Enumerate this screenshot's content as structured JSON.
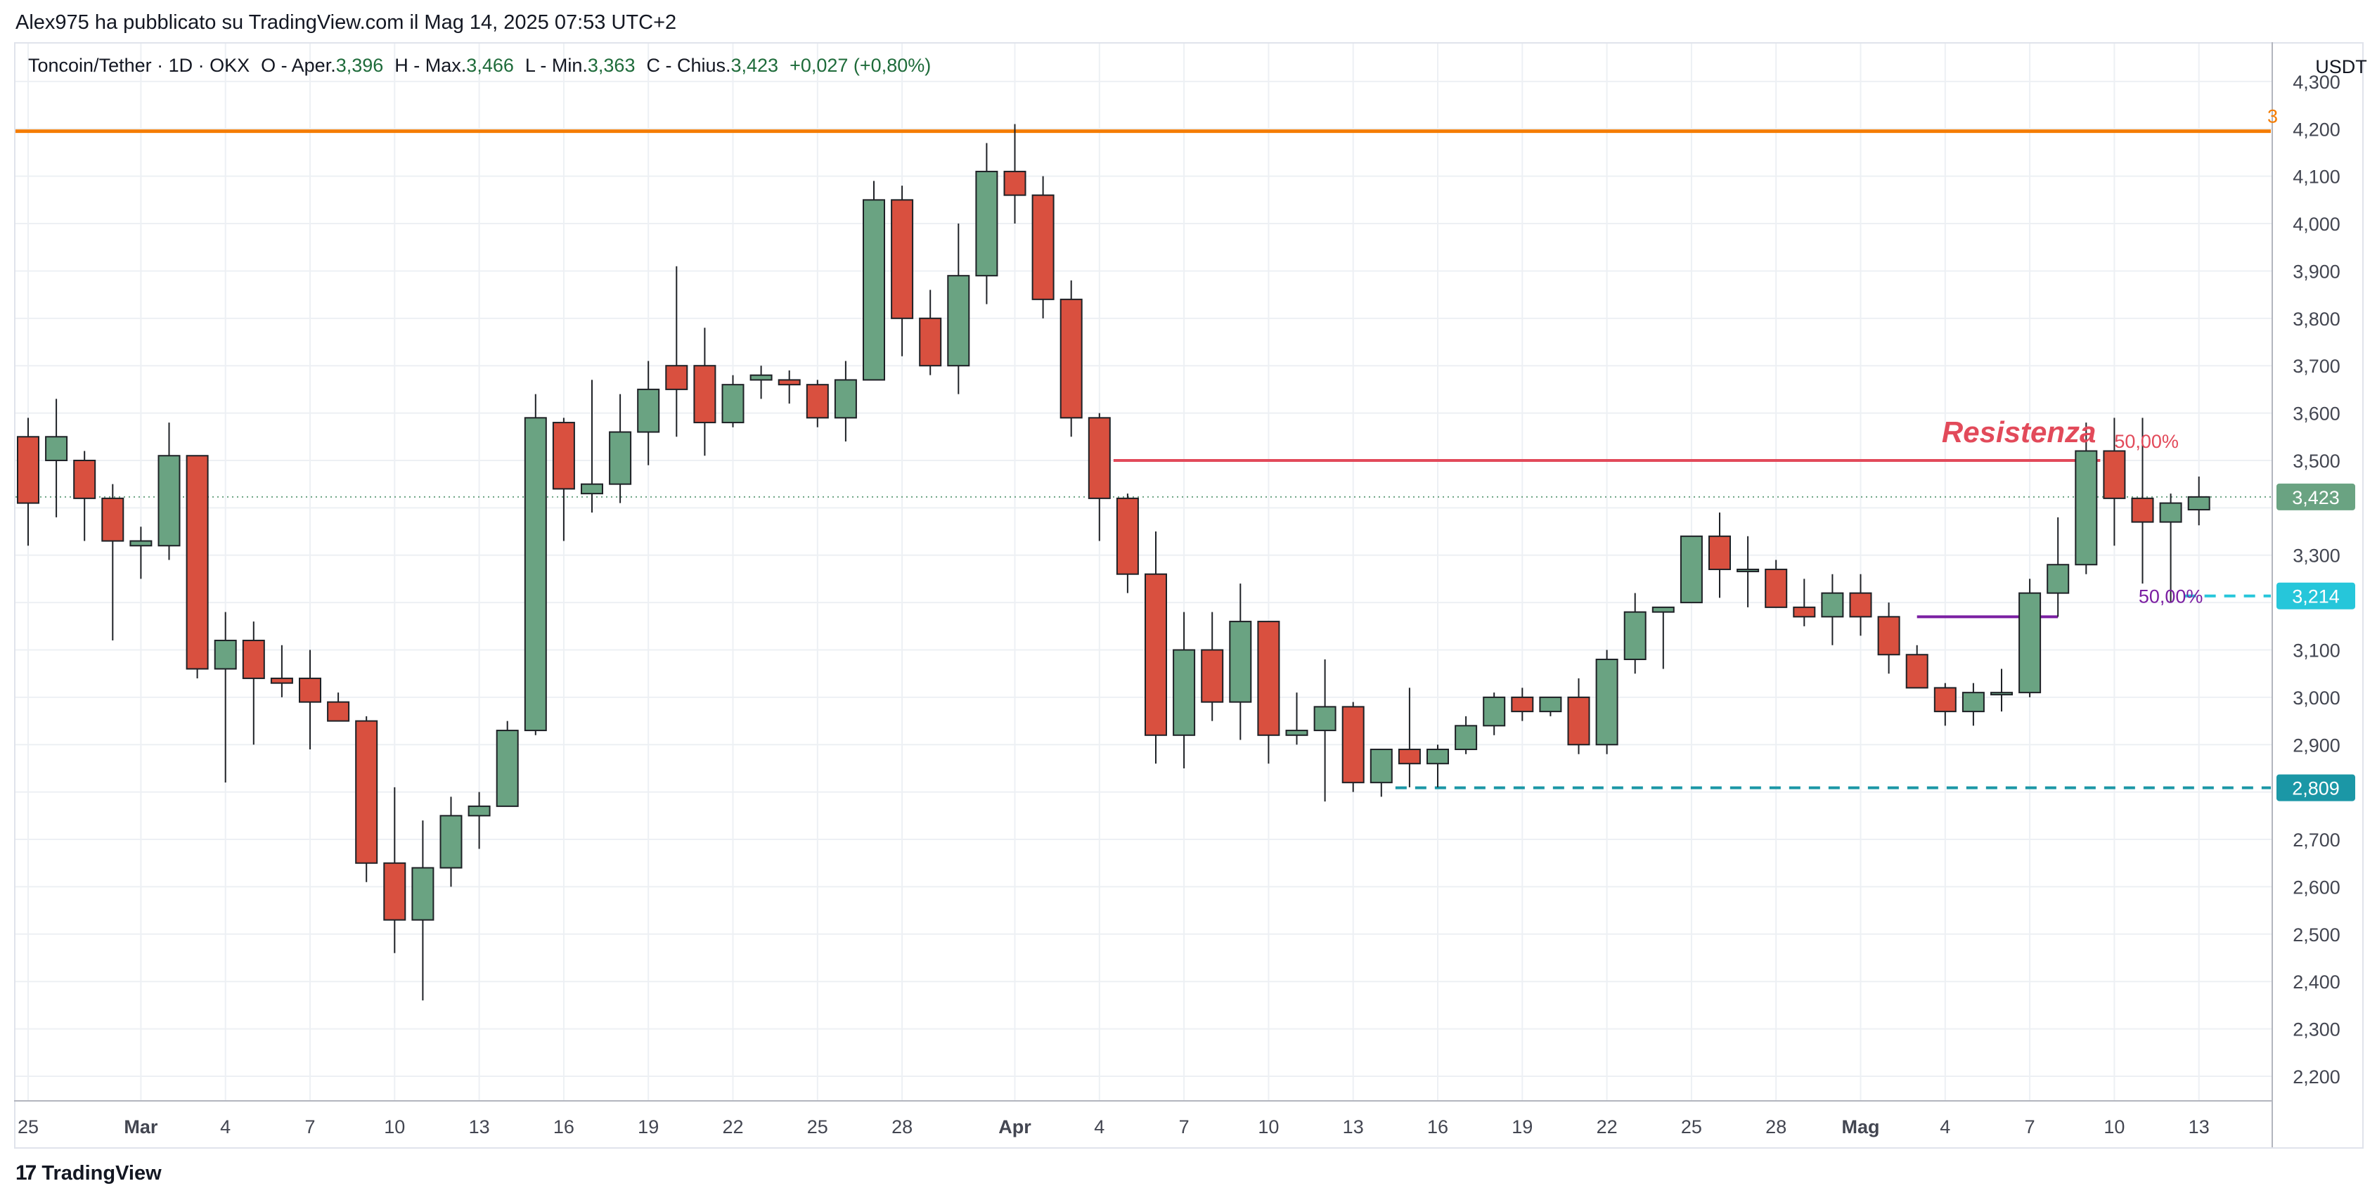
{
  "header": {
    "published": "Alex975 ha pubblicato su TradingView.com il Mag 14, 2025 07:53 UTC+2"
  },
  "legend": {
    "symbol": "Toncoin/Tether · 1D · OKX",
    "open_label": "O - Aper.",
    "open": "3,396",
    "high_label": "H - Max.",
    "high": "3,466",
    "low_label": "L - Min.",
    "low": "3,363",
    "close_label": "C - Chius.",
    "close": "3,423",
    "change": "+0,027 (+0,80%)"
  },
  "footer": {
    "brand": "TradingView",
    "logo_icon": "tradingview-logo-icon"
  },
  "colors": {
    "up": "#6aa382",
    "down": "#d9503f",
    "candle_border": "#1e2126",
    "resistance": "#e24a5a",
    "orange_line": "#f57c00",
    "teal_line": "#1b97a6",
    "cyan_line": "#26c6da",
    "purple_line": "#7b1fa2",
    "price_badge": "#6aa382",
    "grid": "#edf0f4"
  },
  "chart_data": {
    "type": "candlestick",
    "title": "Toncoin/Tether · 1D · OKX",
    "currency": "USDT",
    "ylim": [
      2.15,
      4.33
    ],
    "y_ticks": [
      "4,300",
      "4,200",
      "4,100",
      "4,000",
      "3,900",
      "3,800",
      "3,700",
      "3,600",
      "3,500",
      "3,300",
      "3,100",
      "3,000",
      "2,900",
      "2,700",
      "2,600",
      "2,500",
      "2,400",
      "2,300",
      "2,200"
    ],
    "x_tick_labels": [
      {
        "label": "25",
        "day": 0
      },
      {
        "label": "Mar",
        "day": 4
      },
      {
        "label": "4",
        "day": 7
      },
      {
        "label": "7",
        "day": 10
      },
      {
        "label": "10",
        "day": 13
      },
      {
        "label": "13",
        "day": 16
      },
      {
        "label": "16",
        "day": 19
      },
      {
        "label": "19",
        "day": 22
      },
      {
        "label": "22",
        "day": 25
      },
      {
        "label": "25",
        "day": 28
      },
      {
        "label": "28",
        "day": 31
      },
      {
        "label": "Apr",
        "day": 35
      },
      {
        "label": "4",
        "day": 38
      },
      {
        "label": "7",
        "day": 41
      },
      {
        "label": "10",
        "day": 44
      },
      {
        "label": "13",
        "day": 47
      },
      {
        "label": "16",
        "day": 50
      },
      {
        "label": "19",
        "day": 53
      },
      {
        "label": "22",
        "day": 56
      },
      {
        "label": "25",
        "day": 59
      },
      {
        "label": "28",
        "day": 62
      },
      {
        "label": "Mag",
        "day": 65
      },
      {
        "label": "4",
        "day": 68
      },
      {
        "label": "7",
        "day": 71
      },
      {
        "label": "10",
        "day": 74
      },
      {
        "label": "13",
        "day": 77
      }
    ],
    "candles": [
      [
        3.55,
        3.59,
        3.32,
        3.41
      ],
      [
        3.5,
        3.63,
        3.38,
        3.55
      ],
      [
        3.5,
        3.52,
        3.33,
        3.42
      ],
      [
        3.42,
        3.45,
        3.12,
        3.33
      ],
      [
        3.32,
        3.36,
        3.25,
        3.33
      ],
      [
        3.32,
        3.58,
        3.29,
        3.51
      ],
      [
        3.51,
        3.51,
        3.04,
        3.06
      ],
      [
        3.06,
        3.18,
        2.82,
        3.12
      ],
      [
        3.12,
        3.16,
        2.9,
        3.04
      ],
      [
        3.04,
        3.11,
        3.0,
        3.03
      ],
      [
        3.04,
        3.1,
        2.89,
        2.99
      ],
      [
        2.99,
        3.01,
        2.95,
        2.95
      ],
      [
        2.95,
        2.96,
        2.61,
        2.65
      ],
      [
        2.65,
        2.81,
        2.46,
        2.53
      ],
      [
        2.53,
        2.74,
        2.36,
        2.64
      ],
      [
        2.64,
        2.79,
        2.6,
        2.75
      ],
      [
        2.75,
        2.8,
        2.68,
        2.77
      ],
      [
        2.77,
        2.95,
        2.77,
        2.93
      ],
      [
        2.93,
        3.64,
        2.92,
        3.59
      ],
      [
        3.58,
        3.59,
        3.33,
        3.44
      ],
      [
        3.43,
        3.67,
        3.39,
        3.45
      ],
      [
        3.45,
        3.64,
        3.41,
        3.56
      ],
      [
        3.56,
        3.71,
        3.49,
        3.65
      ],
      [
        3.7,
        3.91,
        3.55,
        3.65
      ],
      [
        3.7,
        3.78,
        3.51,
        3.58
      ],
      [
        3.58,
        3.68,
        3.57,
        3.66
      ],
      [
        3.67,
        3.7,
        3.63,
        3.68
      ],
      [
        3.67,
        3.69,
        3.62,
        3.66
      ],
      [
        3.66,
        3.67,
        3.57,
        3.59
      ],
      [
        3.59,
        3.71,
        3.54,
        3.67
      ],
      [
        3.67,
        4.09,
        3.67,
        4.05
      ],
      [
        4.05,
        4.08,
        3.72,
        3.8
      ],
      [
        3.8,
        3.86,
        3.68,
        3.7
      ],
      [
        3.7,
        4.0,
        3.64,
        3.89
      ],
      [
        3.89,
        4.17,
        3.83,
        4.11
      ],
      [
        4.11,
        4.21,
        4.0,
        4.06
      ],
      [
        4.06,
        4.1,
        3.8,
        3.84
      ],
      [
        3.84,
        3.88,
        3.55,
        3.59
      ],
      [
        3.59,
        3.6,
        3.33,
        3.42
      ],
      [
        3.42,
        3.43,
        3.22,
        3.26
      ],
      [
        3.26,
        3.35,
        2.86,
        2.92
      ],
      [
        2.92,
        3.18,
        2.85,
        3.1
      ],
      [
        3.1,
        3.18,
        2.95,
        2.99
      ],
      [
        2.99,
        3.24,
        2.91,
        3.16
      ],
      [
        3.16,
        3.16,
        2.86,
        2.92
      ],
      [
        2.92,
        3.01,
        2.9,
        2.93
      ],
      [
        2.93,
        3.08,
        2.78,
        2.98
      ],
      [
        2.98,
        2.99,
        2.8,
        2.82
      ],
      [
        2.82,
        2.89,
        2.79,
        2.89
      ],
      [
        2.89,
        3.02,
        2.81,
        2.86
      ],
      [
        2.86,
        2.9,
        2.81,
        2.89
      ],
      [
        2.89,
        2.96,
        2.88,
        2.94
      ],
      [
        2.94,
        3.01,
        2.92,
        3.0
      ],
      [
        3.0,
        3.02,
        2.95,
        2.97
      ],
      [
        2.97,
        3.0,
        2.96,
        3.0
      ],
      [
        3.0,
        3.04,
        2.88,
        2.9
      ],
      [
        2.9,
        3.1,
        2.88,
        3.08
      ],
      [
        3.08,
        3.22,
        3.05,
        3.18
      ],
      [
        3.18,
        3.19,
        3.06,
        3.19
      ],
      [
        3.2,
        3.34,
        3.2,
        3.34
      ],
      [
        3.34,
        3.39,
        3.21,
        3.27
      ],
      [
        3.27,
        3.34,
        3.19,
        3.27
      ],
      [
        3.27,
        3.29,
        3.19,
        3.19
      ],
      [
        3.19,
        3.25,
        3.15,
        3.17
      ],
      [
        3.17,
        3.26,
        3.11,
        3.22
      ],
      [
        3.22,
        3.26,
        3.13,
        3.17
      ],
      [
        3.17,
        3.2,
        3.05,
        3.09
      ],
      [
        3.09,
        3.11,
        3.02,
        3.02
      ],
      [
        3.02,
        3.03,
        2.94,
        2.97
      ],
      [
        2.97,
        3.03,
        2.94,
        3.01
      ],
      [
        3.01,
        3.06,
        2.97,
        3.01
      ],
      [
        3.01,
        3.25,
        3.0,
        3.22
      ],
      [
        3.22,
        3.38,
        3.17,
        3.28
      ],
      [
        3.28,
        3.58,
        3.26,
        3.52
      ],
      [
        3.52,
        3.59,
        3.32,
        3.42
      ],
      [
        3.42,
        3.59,
        3.24,
        3.37
      ],
      [
        3.37,
        3.43,
        3.2,
        3.41
      ],
      [
        3.396,
        3.466,
        3.363,
        3.423
      ]
    ],
    "horizontal_lines": [
      {
        "name": "orange-level",
        "y": 4.195,
        "from_day": -1,
        "to_day": 81.5,
        "style": "solid",
        "label": "3"
      },
      {
        "name": "resistance-line",
        "y": 3.5,
        "from_day": 38.5,
        "to_day": 73.5,
        "style": "solid",
        "label": "50,00%",
        "annotation": "Resistenza"
      },
      {
        "name": "purple-line",
        "y": 3.17,
        "from_day": 67,
        "to_day": 72,
        "style": "solid"
      },
      {
        "name": "cyan-level",
        "y": 3.214,
        "from_day": 76.5,
        "to_day": 81.5,
        "style": "dashed",
        "label": "50,00%"
      },
      {
        "name": "teal-level",
        "y": 2.809,
        "from_day": 48.5,
        "to_day": 81.5,
        "style": "dashed"
      }
    ],
    "price_badges": [
      {
        "value": "3,423",
        "y": 3.423,
        "color": "#6aa382"
      },
      {
        "value": "3,214",
        "y": 3.214,
        "color": "#26c6da"
      },
      {
        "value": "2,809",
        "y": 2.809,
        "color": "#1b97a6"
      }
    ]
  }
}
